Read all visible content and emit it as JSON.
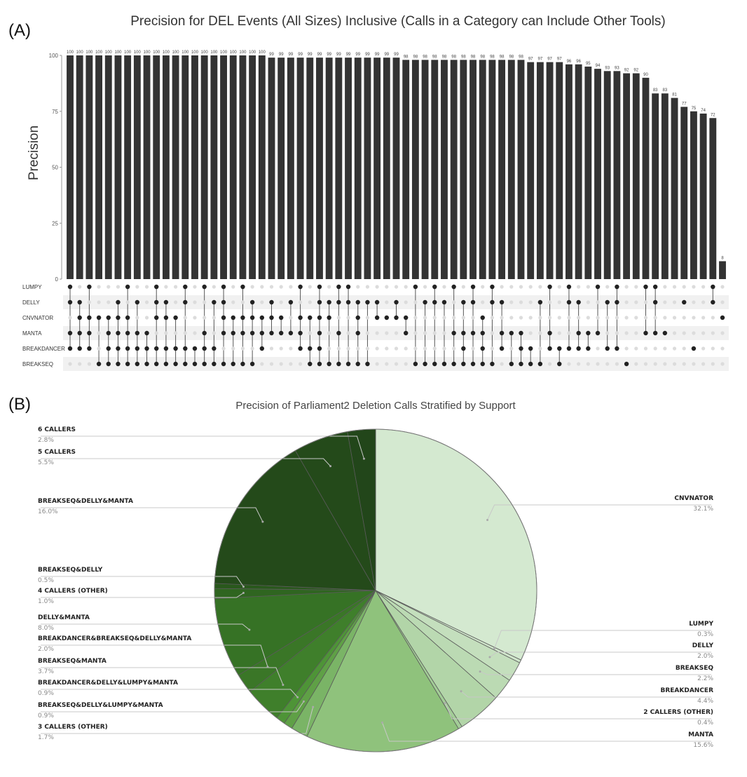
{
  "panel_a_label": "(A)",
  "panel_b_label": "(B)",
  "chart_data": [
    {
      "type": "bar",
      "subtype": "upset",
      "title": "Precision for DEL Events (All Sizes) Inclusive (Calls in a Category can Include Other Tools)",
      "ylabel": "Precision",
      "ylim": [
        0,
        100
      ],
      "yticks": [
        "0",
        "25",
        "50",
        "75",
        "100"
      ],
      "grid": false,
      "bar_color": "#333333",
      "sets": [
        "LUMPY",
        "DELLY",
        "CNVNATOR",
        "MANTA",
        "BREAKDANCER",
        "BREAKSEQ"
      ],
      "values": [
        100,
        100,
        100,
        100,
        100,
        100,
        100,
        100,
        100,
        100,
        100,
        100,
        100,
        100,
        100,
        100,
        100,
        100,
        100,
        100,
        100,
        99,
        99,
        99,
        99,
        99,
        99,
        99,
        99,
        99,
        99,
        99,
        99,
        99,
        99,
        98,
        98,
        98,
        98,
        98,
        98,
        98,
        98,
        98,
        98,
        98,
        98,
        98,
        97,
        97,
        97,
        97,
        96,
        96,
        95,
        94,
        93,
        93,
        92,
        92,
        90,
        83,
        83,
        81,
        77,
        75,
        74,
        72,
        8
      ],
      "value_labels": [
        "100",
        "100",
        "100",
        "100",
        "100",
        "100",
        "100",
        "100",
        "100",
        "100",
        "100",
        "100",
        "100",
        "100",
        "100",
        "100",
        "100",
        "100",
        "100",
        "100",
        "100",
        "99",
        "99",
        "99",
        "99",
        "99",
        "99",
        "99",
        "99",
        "99",
        "99",
        "99",
        "99",
        "99",
        "99",
        "98",
        "98",
        "98",
        "98",
        "98",
        "98",
        "98",
        "98",
        "98",
        "98",
        "98",
        "98",
        "98",
        "97",
        "97",
        "97",
        "97",
        "96",
        "96",
        "95",
        "94",
        "93",
        "93",
        "92",
        "92",
        "90",
        "83",
        "83",
        "81",
        "77",
        "75",
        "74",
        "72",
        "8"
      ]
    },
    {
      "type": "pie",
      "title": "Precision of Parliament2 Deletion Calls Stratified by Support",
      "slices": [
        {
          "label": "CNVNATOR",
          "pct_label": "32.1%",
          "value": 32.1,
          "color": "#d4e9d0",
          "side": "right"
        },
        {
          "label": "LUMPY",
          "pct_label": "0.3%",
          "value": 0.3,
          "color": "#cfe5ca",
          "side": "right"
        },
        {
          "label": "DELLY",
          "pct_label": "2.0%",
          "value": 2.0,
          "color": "#c4dfbd",
          "side": "right"
        },
        {
          "label": "BREAKSEQ",
          "pct_label": "2.2%",
          "value": 2.2,
          "color": "#bbdab3",
          "side": "right"
        },
        {
          "label": "BREAKDANCER",
          "pct_label": "4.4%",
          "value": 4.4,
          "color": "#b2d5a8",
          "side": "right"
        },
        {
          "label": "2 CALLERS (OTHER)",
          "pct_label": "0.4%",
          "value": 0.4,
          "color": "#a3cd97",
          "side": "right"
        },
        {
          "label": "MANTA",
          "pct_label": "15.6%",
          "value": 15.6,
          "color": "#8fc27c",
          "side": "right"
        },
        {
          "label": "3 CALLERS (OTHER)",
          "pct_label": "1.7%",
          "value": 1.7,
          "color": "#7ab466",
          "side": "left"
        },
        {
          "label": "BREAKSEQ&DELLY&LUMPY&MANTA",
          "pct_label": "0.9%",
          "value": 0.9,
          "color": "#5fa046",
          "side": "left"
        },
        {
          "label": "BREAKDANCER&DELLY&LUMPY&MANTA",
          "pct_label": "0.9%",
          "value": 0.9,
          "color": "#4e9437",
          "side": "left"
        },
        {
          "label": "BREAKSEQ&MANTA",
          "pct_label": "3.7%",
          "value": 3.7,
          "color": "#3f7f2b",
          "side": "left"
        },
        {
          "label": "BREAKDANCER&BREAKSEQ&DELLY&MANTA",
          "pct_label": "2.0%",
          "value": 2.0,
          "color": "#3a7627",
          "side": "left"
        },
        {
          "label": "DELLY&MANTA",
          "pct_label": "8.0%",
          "value": 8.0,
          "color": "#367225",
          "side": "left"
        },
        {
          "label": "4 CALLERS (OTHER)",
          "pct_label": "1.0%",
          "value": 1.0,
          "color": "#2f6520",
          "side": "left"
        },
        {
          "label": "BREAKSEQ&DELLY",
          "pct_label": "0.5%",
          "value": 0.5,
          "color": "#29581c",
          "side": "left"
        },
        {
          "label": "BREAKSEQ&DELLY&MANTA",
          "pct_label": "16.0%",
          "value": 16.0,
          "color": "#244a1a",
          "side": "left"
        },
        {
          "label": "5 CALLERS",
          "pct_label": "5.5%",
          "value": 5.5,
          "color": "#244a1a",
          "side": "left"
        },
        {
          "label": "6 CALLERS",
          "pct_label": "2.8%",
          "value": 2.8,
          "color": "#22461a",
          "side": "left"
        }
      ]
    }
  ]
}
